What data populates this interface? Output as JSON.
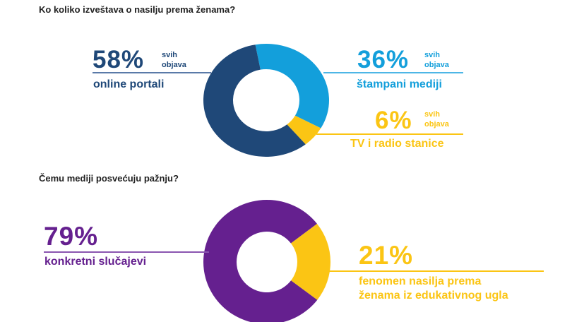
{
  "colors": {
    "online": "#1f4878",
    "print": "#139fdb",
    "tv": "#fbc514",
    "cases": "#65208f",
    "phenomenon": "#fbc514"
  },
  "chart_data": [
    {
      "type": "pie",
      "donut": true,
      "title": "Ko koliko izveštava o nasilju prema ženama?",
      "slices": [
        {
          "label": "štampani mediji",
          "value": 36,
          "value_label": "36%",
          "suffix": "svih objava",
          "color": "#139fdb"
        },
        {
          "label": "TV i radio stanice",
          "value": 6,
          "value_label": "6%",
          "suffix": "svih objava",
          "color": "#fbc514"
        },
        {
          "label": "online portali",
          "value": 58,
          "value_label": "58%",
          "suffix": "svih objava",
          "color": "#1f4878"
        }
      ]
    },
    {
      "type": "pie",
      "donut": true,
      "title": "Čemu mediji posvećuju pažnju?",
      "slices": [
        {
          "label": "fenomen nasilja prema ženama iz edukativnog ugla",
          "line1": "fenomen nasilja prema",
          "line2": "ženama iz edukativnog ugla",
          "value": 21,
          "value_label": "21%",
          "color": "#fbc514"
        },
        {
          "label": "konkretni slučajevi",
          "value": 79,
          "value_label": "79%",
          "color": "#65208f"
        }
      ]
    }
  ],
  "suffix": {
    "l1": "svih",
    "l2": "objava"
  }
}
